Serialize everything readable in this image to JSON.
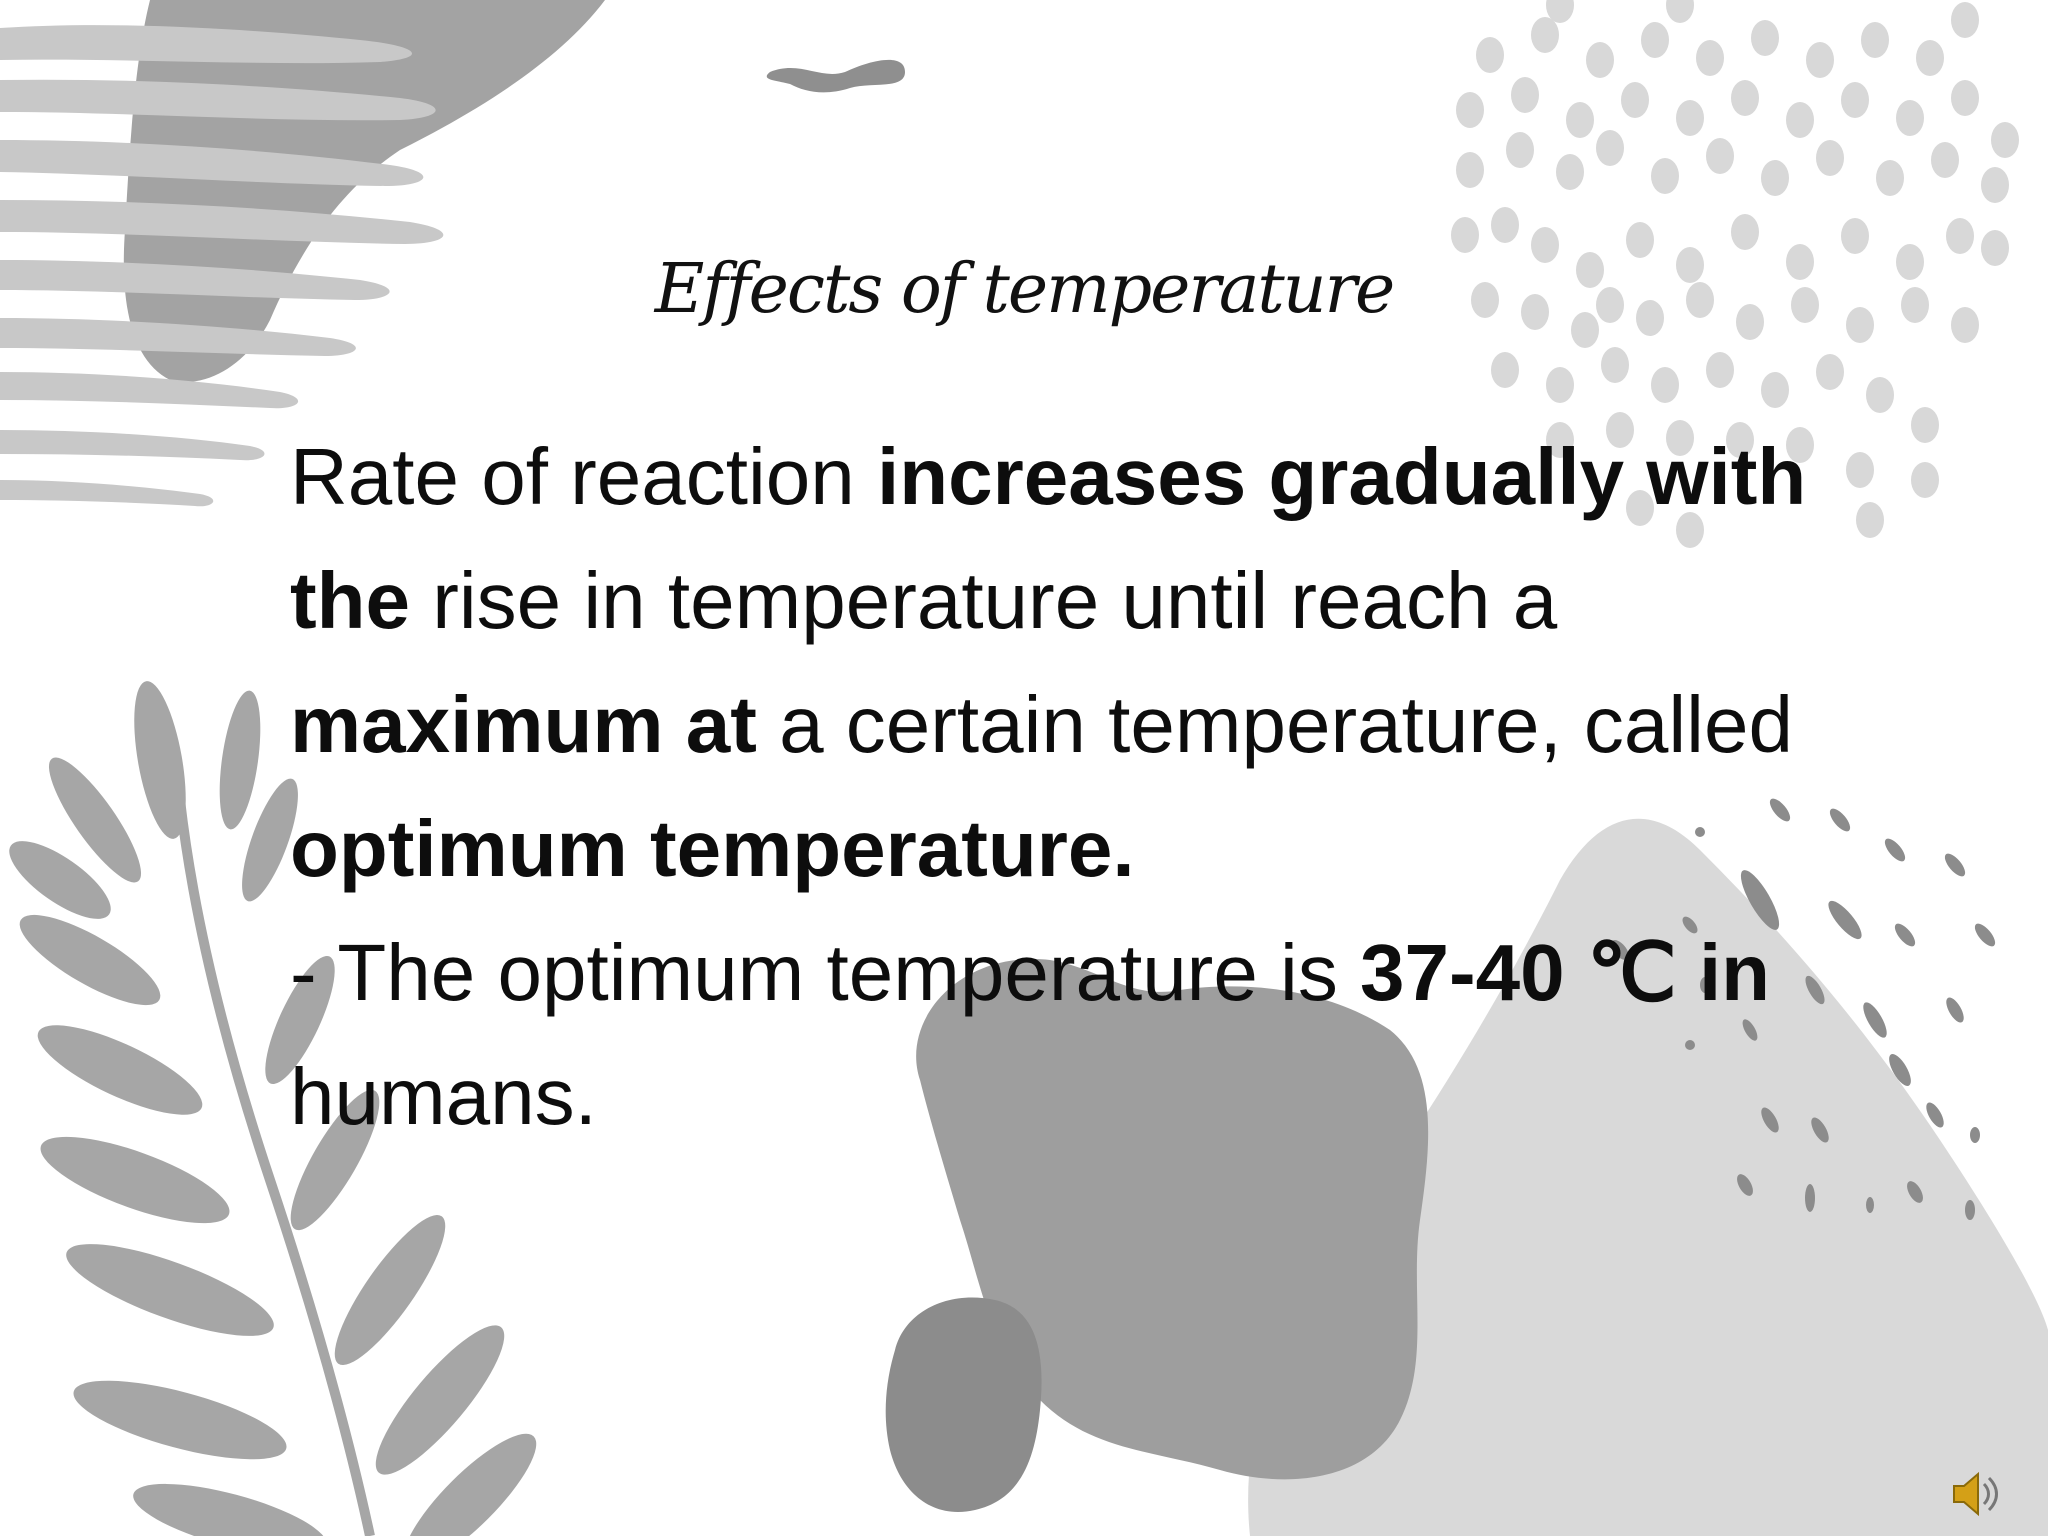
{
  "slide": {
    "title": "Effects of temperature",
    "paragraph1": [
      {
        "text": "Rate of reaction ",
        "bold": false
      },
      {
        "text": "increases gradually with the",
        "bold": true
      },
      {
        "text": " rise in temperature until reach a ",
        "bold": false
      },
      {
        "text": "maximum at",
        "bold": true
      },
      {
        "text": " a certain temperature, called ",
        "bold": false
      },
      {
        "text": "optimum temperature.",
        "bold": true
      }
    ],
    "paragraph2": [
      {
        "text": "- The optimum temperature is ",
        "bold": false
      },
      {
        "text": "37-40 ℃ in",
        "bold": true
      },
      {
        "text": " humans.",
        "bold": false
      }
    ]
  },
  "icons": {
    "audio": "speaker-icon"
  },
  "colors": {
    "background": "#ffffff",
    "text": "#0d0d0d",
    "shape_dark": "#8c8c8c",
    "shape_mid": "#a6a6a6",
    "shape_light": "#d9d9d9",
    "speaker": "#d4a017"
  }
}
